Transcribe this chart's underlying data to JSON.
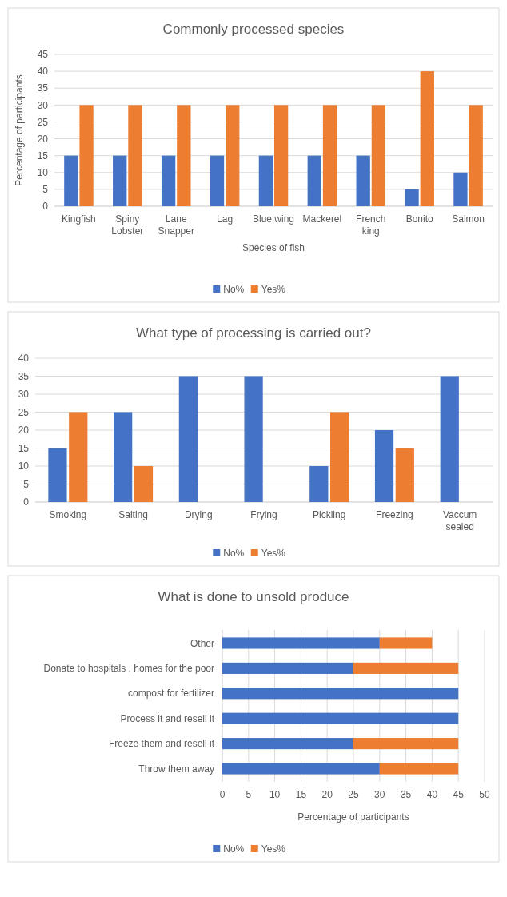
{
  "chart_data": [
    {
      "type": "bar",
      "title": "Commonly processed species",
      "xlabel": "Species of fish",
      "ylabel": "Percentage of participants",
      "categories": [
        "Kingfish",
        "Spiny Lobster",
        "Lane Snapper",
        "Lag",
        "Blue wing",
        "Mackerel",
        "French king",
        "Bonito",
        "Salmon"
      ],
      "series": [
        {
          "name": "No%",
          "color": "#4472c4",
          "values": [
            15,
            15,
            15,
            15,
            15,
            15,
            15,
            5,
            10
          ]
        },
        {
          "name": "Yes%",
          "color": "#ed7d31",
          "values": [
            30,
            30,
            30,
            30,
            30,
            30,
            30,
            40,
            30
          ]
        }
      ],
      "ylim": [
        0,
        45
      ],
      "yticks": [
        0,
        5,
        10,
        15,
        20,
        25,
        30,
        35,
        40,
        45
      ],
      "grid": "y",
      "legend": "bottom"
    },
    {
      "type": "bar",
      "title": "What type of processing is carried out?",
      "categories": [
        "Smoking",
        "Salting",
        "Drying",
        "Frying",
        "Pickling",
        "Freezing",
        "Vaccum sealed"
      ],
      "series": [
        {
          "name": "No%",
          "color": "#4472c4",
          "values": [
            15,
            25,
            35,
            35,
            10,
            20,
            35
          ]
        },
        {
          "name": "Yes%",
          "color": "#ed7d31",
          "values": [
            25,
            10,
            0,
            0,
            25,
            15,
            0
          ]
        }
      ],
      "ylim": [
        0,
        40
      ],
      "yticks": [
        0,
        5,
        10,
        15,
        20,
        25,
        30,
        35,
        40
      ],
      "grid": "y",
      "legend": "bottom"
    },
    {
      "type": "bar",
      "title": "What is done to unsold produce",
      "xlabel": "Percentage of participants",
      "orientation": "horizontal",
      "stacked": true,
      "categories": [
        "Other",
        "Donate to hospitals , homes for the poor",
        "compost for fertilizer",
        "Process it and resell it",
        "Freeze them and resell it",
        "Throw them away"
      ],
      "series": [
        {
          "name": "No%",
          "color": "#4472c4",
          "values": [
            30,
            25,
            45,
            45,
            25,
            30
          ]
        },
        {
          "name": "Yes%",
          "color": "#ed7d31",
          "values": [
            10,
            20,
            0,
            0,
            20,
            15
          ]
        }
      ],
      "xlim": [
        0,
        50
      ],
      "xticks": [
        0,
        5,
        10,
        15,
        20,
        25,
        30,
        35,
        40,
        45,
        50
      ],
      "grid": "x",
      "legend": "bottom"
    }
  ]
}
